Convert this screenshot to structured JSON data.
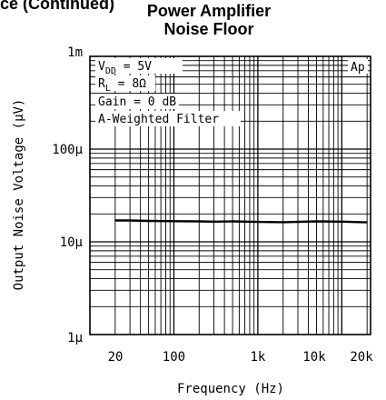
{
  "header": {
    "continued": "ce (Continued)"
  },
  "chart_data": {
    "type": "line",
    "title_lines": [
      "Power Amplifier",
      "Noise Floor"
    ],
    "xlabel": "Frequency (Hz)",
    "ylabel": "Output Noise Voltage (μV)",
    "x_scale": "log",
    "y_scale": "log",
    "xlim": [
      10,
      22000
    ],
    "ylim": [
      1,
      1000
    ],
    "x_ticks": [
      {
        "value": 20,
        "label": "20"
      },
      {
        "value": 100,
        "label": "100"
      },
      {
        "value": 1000,
        "label": "1k"
      },
      {
        "value": 10000,
        "label": "10k"
      },
      {
        "value": 20000,
        "label": "20k"
      }
    ],
    "y_ticks": [
      {
        "value": 1000,
        "label": "1m"
      },
      {
        "value": 100,
        "label": "100μ"
      },
      {
        "value": 10,
        "label": "10μ"
      },
      {
        "value": 1,
        "label": "1μ"
      }
    ],
    "grid": true,
    "annotations": [
      {
        "id": "vdd",
        "parts": [
          "V",
          "DD",
          " = 5V"
        ]
      },
      {
        "id": "rl",
        "parts": [
          "R",
          "L",
          " = 8Ω"
        ]
      },
      {
        "id": "gain",
        "parts": [
          "Gain = 0 dB"
        ]
      },
      {
        "id": "filter",
        "parts": [
          "A-Weighted Filter"
        ]
      }
    ],
    "watermark": "Ap",
    "series": [
      {
        "x": [
          20,
          30,
          50,
          100,
          200,
          300,
          500,
          1000,
          2000,
          5000,
          10000,
          20000
        ],
        "values": [
          17,
          17,
          16.8,
          16.7,
          16.6,
          16.5,
          16.6,
          16.4,
          16.3,
          16.6,
          16.5,
          16.2
        ]
      }
    ]
  }
}
